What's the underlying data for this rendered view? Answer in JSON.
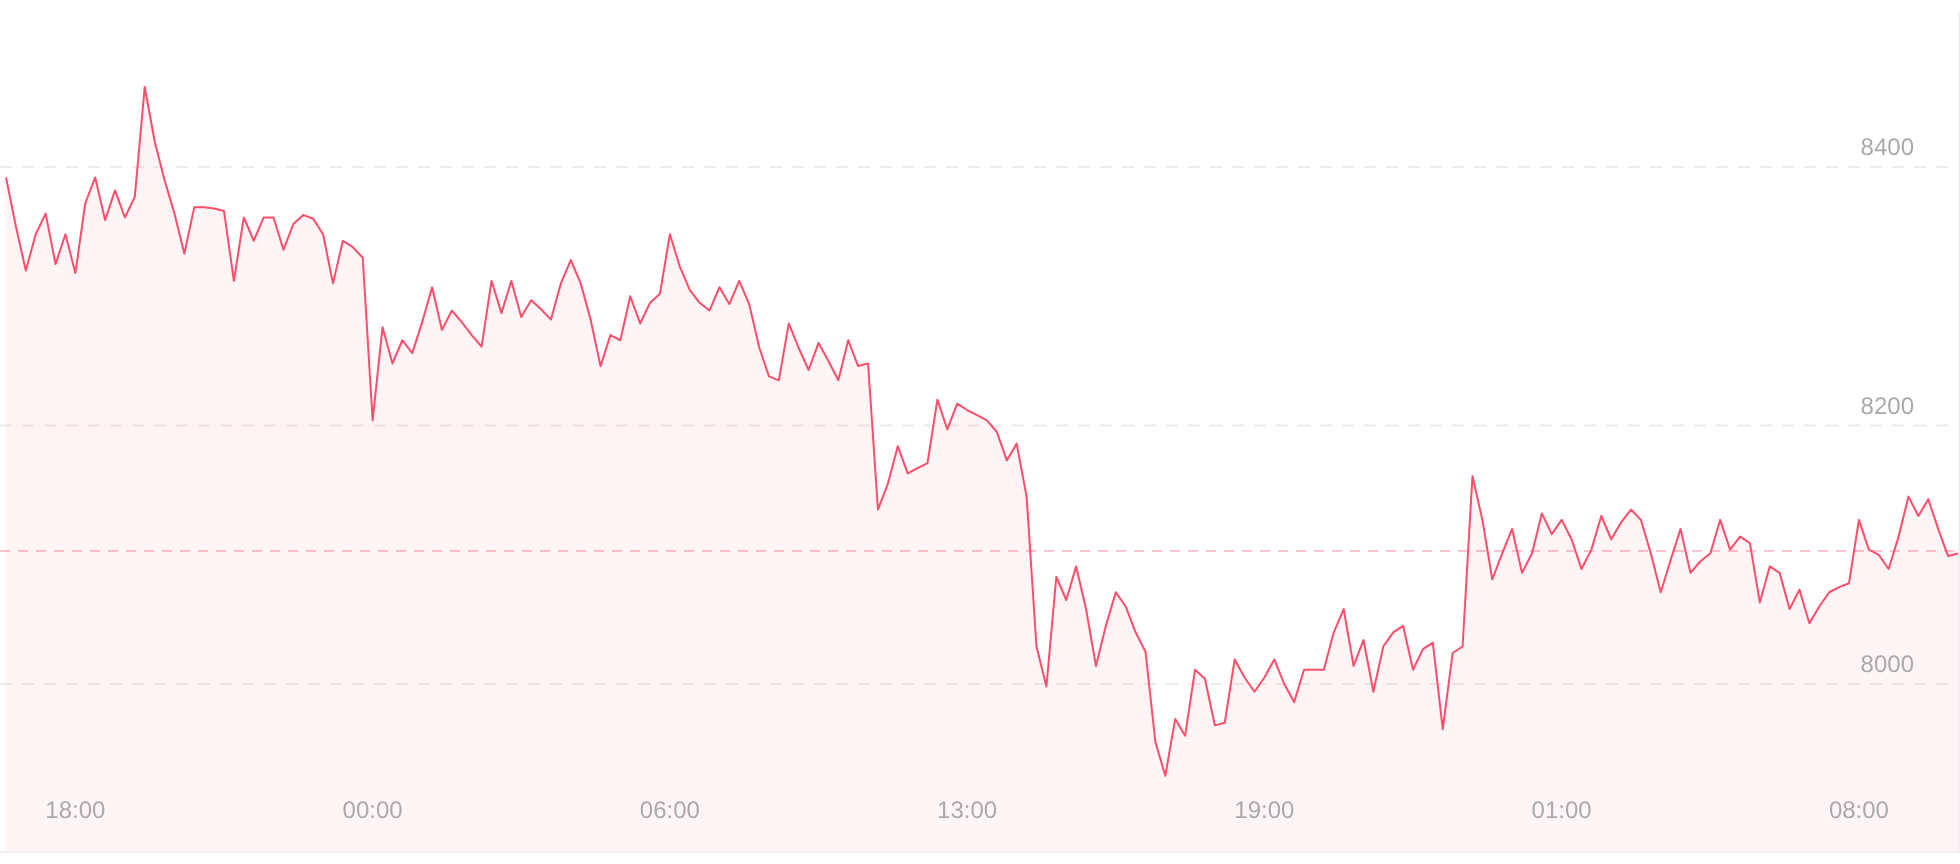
{
  "chart_data": {
    "type": "area",
    "categories": [
      null,
      null,
      null,
      null,
      null,
      null,
      null,
      "18:00",
      null,
      null,
      null,
      null,
      null,
      null,
      null,
      null,
      null,
      null,
      null,
      null,
      null,
      null,
      null,
      null,
      null,
      null,
      null,
      null,
      null,
      null,
      null,
      null,
      null,
      null,
      null,
      null,
      null,
      "00:00",
      null,
      null,
      null,
      null,
      null,
      null,
      null,
      null,
      null,
      null,
      null,
      null,
      null,
      null,
      null,
      null,
      null,
      null,
      null,
      null,
      null,
      null,
      null,
      null,
      null,
      null,
      null,
      null,
      null,
      "06:00",
      null,
      null,
      null,
      null,
      null,
      null,
      null,
      null,
      null,
      null,
      null,
      null,
      null,
      null,
      null,
      null,
      null,
      null,
      null,
      null,
      null,
      null,
      null,
      null,
      null,
      null,
      null,
      null,
      null,
      "13:00",
      null,
      null,
      null,
      null,
      null,
      null,
      null,
      null,
      null,
      null,
      null,
      null,
      null,
      null,
      null,
      null,
      null,
      null,
      null,
      null,
      null,
      null,
      null,
      null,
      null,
      null,
      null,
      null,
      null,
      "19:00",
      null,
      null,
      null,
      null,
      null,
      null,
      null,
      null,
      null,
      null,
      null,
      null,
      null,
      null,
      null,
      null,
      null,
      null,
      null,
      null,
      null,
      null,
      null,
      null,
      null,
      null,
      null,
      null,
      null,
      "01:00",
      null,
      null,
      null,
      null,
      null,
      null,
      null,
      null,
      null,
      null,
      null,
      null,
      null,
      null,
      null,
      null,
      null,
      null,
      null,
      null,
      null,
      null,
      null,
      null,
      null,
      null,
      null,
      null,
      null,
      "08:00",
      null,
      null,
      null,
      null,
      null,
      null,
      null,
      null,
      null,
      null
    ],
    "series": [
      {
        "color": "#ff4d6a",
        "values": [
          8392,
          8354,
          8320,
          8348,
          8364,
          8325,
          8348,
          8318,
          8372,
          8392,
          8359,
          8382,
          8361,
          8377,
          8462,
          8420,
          8390,
          8364,
          8333,
          8369,
          8369,
          8368,
          8366,
          8312,
          8361,
          8343,
          8361,
          8361,
          8336,
          8356,
          8363,
          8360,
          8348,
          8310,
          8343,
          8338,
          8330,
          8204,
          8276,
          8248,
          8266,
          8256,
          8280,
          8307,
          8274,
          8289,
          8280,
          8270,
          8261,
          8312,
          8287,
          8312,
          8284,
          8297,
          8290,
          8282,
          8310,
          8328,
          8310,
          8282,
          8246,
          8270,
          8266,
          8300,
          8279,
          8295,
          8302,
          8348,
          8323,
          8305,
          8295,
          8289,
          8307,
          8294,
          8312,
          8294,
          8261,
          8238,
          8235,
          8279,
          8260,
          8243,
          8264,
          8250,
          8235,
          8266,
          8246,
          8248,
          8135,
          8155,
          8184,
          8163,
          8167,
          8171,
          8220,
          8197,
          8217,
          8212,
          8208,
          8204,
          8195,
          8173,
          8186,
          8145,
          8029,
          7998,
          8083,
          8065,
          8091,
          8058,
          8014,
          8045,
          8071,
          8060,
          8040,
          8025,
          7955,
          7929,
          7973,
          7960,
          8011,
          8004,
          7968,
          7970,
          8019,
          8005,
          7994,
          8005,
          8019,
          8000,
          7986,
          8011,
          8011,
          8011,
          8040,
          8058,
          8014,
          8034,
          7994,
          8029,
          8040,
          8045,
          8011,
          8027,
          8032,
          7965,
          8024,
          8029,
          8161,
          8127,
          8081,
          8101,
          8120,
          8086,
          8101,
          8132,
          8116,
          8127,
          8112,
          8089,
          8104,
          8130,
          8112,
          8125,
          8135,
          8127,
          8101,
          8071,
          8096,
          8120,
          8086,
          8095,
          8101,
          8127,
          8104,
          8114,
          8109,
          8063,
          8091,
          8086,
          8058,
          8073,
          8047,
          8060,
          8071,
          8075,
          8078,
          8127,
          8104,
          8100,
          8089,
          8114,
          8145,
          8130,
          8143,
          8120,
          8099,
          8101
        ]
      }
    ],
    "ylim": [
      7870,
      8520
    ],
    "yticks": [
      8000,
      8200,
      8400
    ],
    "grid": "y",
    "ref_lines": [
      {
        "axis": "y",
        "value": 8103,
        "color": "#f8c4ce",
        "line_style": "dashed"
      }
    ]
  }
}
